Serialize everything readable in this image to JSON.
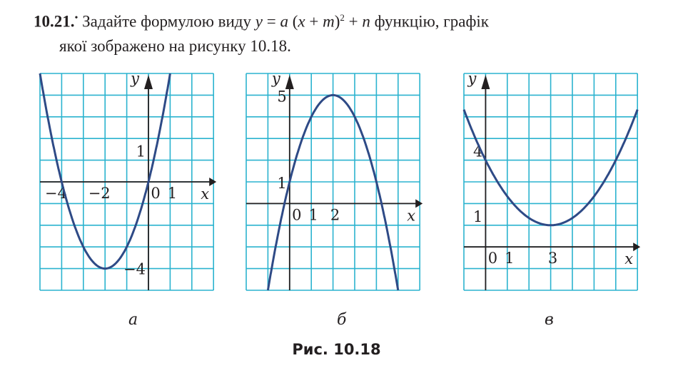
{
  "task": {
    "number": "10.21.",
    "marker": "•",
    "text_before": "Задайте формулою виду ",
    "formula_y": "y",
    "formula_eq": " = ",
    "formula_a": "a",
    "formula_mid": " (",
    "formula_x": "x",
    "formula_plus": " + ",
    "formula_m": "m",
    "formula_close": ")",
    "formula_sq": "2",
    "formula_plus2": " + ",
    "formula_n": "n",
    "text_after": " функцію, графік",
    "line2": "якої зображено на рисунку 10.18."
  },
  "figure_caption": "Рис. 10.18",
  "colors": {
    "grid": "#2bb3cf",
    "curve": "#2e4a86",
    "axis": "#231f20"
  },
  "chart_data": [
    {
      "type": "line",
      "caption": "а",
      "xlim": [
        -5,
        3
      ],
      "ylim": [
        -5,
        5
      ],
      "grid": true,
      "xlabel": "x",
      "ylabel": "y",
      "curve": {
        "form": "a(x+m)^2+n",
        "vertex": [
          -2,
          -4
        ],
        "a": 1
      },
      "x_tick_labels": [
        {
          "v": -4,
          "t": "−4"
        },
        {
          "v": -2,
          "t": "−2"
        },
        {
          "v": 0,
          "t": "0"
        },
        {
          "v": 1,
          "t": "1"
        }
      ],
      "y_tick_labels": [
        {
          "v": 1,
          "t": "1"
        },
        {
          "v": -4,
          "t": "−4"
        }
      ]
    },
    {
      "type": "line",
      "caption": "б",
      "xlim": [
        -2,
        6
      ],
      "ylim": [
        -4,
        6
      ],
      "grid": true,
      "xlabel": "x",
      "ylabel": "y",
      "curve": {
        "form": "a(x+m)^2+n",
        "vertex": [
          2,
          5
        ],
        "a": -1
      },
      "x_tick_labels": [
        {
          "v": 0,
          "t": "0"
        },
        {
          "v": 1,
          "t": "1"
        },
        {
          "v": 2,
          "t": "2"
        }
      ],
      "y_tick_labels": [
        {
          "v": 5,
          "t": "5"
        },
        {
          "v": 1,
          "t": "1"
        }
      ]
    },
    {
      "type": "line",
      "caption": "в",
      "xlim": [
        -1,
        7
      ],
      "ylim": [
        -2,
        8
      ],
      "grid": true,
      "xlabel": "x",
      "ylabel": "y",
      "curve": {
        "form": "a(x+m)^2+n",
        "vertex": [
          3,
          1
        ],
        "a": 0.3333
      },
      "x_tick_labels": [
        {
          "v": 0,
          "t": "0"
        },
        {
          "v": 1,
          "t": "1"
        },
        {
          "v": 3,
          "t": "3"
        }
      ],
      "y_tick_labels": [
        {
          "v": 4,
          "t": "4"
        },
        {
          "v": 1,
          "t": "1"
        }
      ]
    }
  ]
}
